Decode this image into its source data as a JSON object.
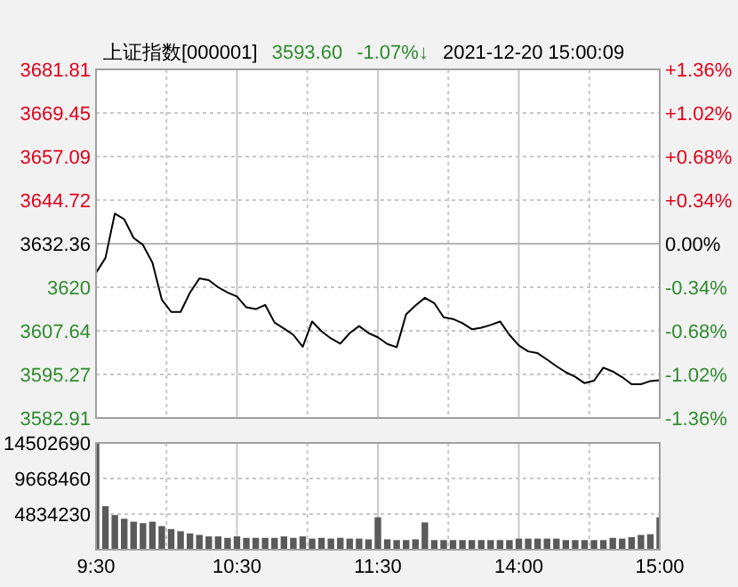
{
  "chart_data": [
    {
      "type": "line",
      "title": "上证指数[000001]",
      "annotations": [
        "3593.60",
        "-1.07%↓",
        "2021-12-20 15:00:09"
      ],
      "tick_labels": "y",
      "grid": true,
      "categories": [
        null,
        null,
        null,
        null,
        null,
        null,
        null,
        null,
        null,
        null,
        null,
        null,
        null,
        null,
        null,
        null,
        null,
        null,
        null,
        null,
        null,
        null,
        null,
        null,
        null,
        null,
        null,
        null,
        null,
        null,
        null,
        null,
        null,
        null,
        null,
        null,
        null,
        null,
        null,
        null,
        null,
        null,
        null,
        null,
        null,
        null,
        null,
        null,
        null,
        null,
        null,
        null,
        null,
        null,
        null,
        null,
        null,
        null,
        null,
        null,
        null
      ],
      "series": [
        {
          "color": "#000000",
          "values": [
            3624.1,
            3628.3,
            3640.9,
            3639.3,
            3634.0,
            3632.0,
            3627.0,
            3616.5,
            3613.0,
            3613.0,
            3618.5,
            3622.5,
            3622.0,
            3620.0,
            3618.5,
            3617.4,
            3614.3,
            3613.8,
            3615.0,
            3610.0,
            3608.3,
            3606.5,
            3603.1,
            3610.3,
            3607.5,
            3605.5,
            3604.0,
            3607.0,
            3609.0,
            3607.0,
            3605.8,
            3603.9,
            3603.0,
            3612.3,
            3614.8,
            3617.0,
            3615.5,
            3611.5,
            3611.0,
            3609.8,
            3608.1,
            3608.5,
            3609.3,
            3610.3,
            3606.5,
            3603.5,
            3601.8,
            3601.3,
            3599.5,
            3597.6,
            3595.9,
            3594.6,
            3592.8,
            3593.5,
            3597.2,
            3596.1,
            3594.5,
            3592.5,
            3592.5,
            3593.4,
            3593.6
          ]
        }
      ],
      "ylim": [
        3582.91,
        3681.81
      ],
      "yticks": [
        3582.91,
        3595.27,
        3607.64,
        {
          "value": 3620.0,
          "label": "3620"
        },
        3632.36,
        3644.72,
        3657.09,
        3669.45,
        3681.81
      ],
      "y2lim": [
        -1.36,
        1.36
      ],
      "y2ticks": [
        {
          "value": -1.36,
          "label": "-1.36%"
        },
        {
          "value": -1.02,
          "label": "-1.02%"
        },
        {
          "value": -0.68,
          "label": "-0.68%"
        },
        {
          "value": -0.34,
          "label": "-0.34%"
        },
        {
          "value": 0,
          "label": "0.00%"
        },
        {
          "value": 0.34,
          "label": "+0.34%"
        },
        {
          "value": 0.68,
          "label": "+0.68%"
        },
        {
          "value": 1.02,
          "label": "+1.02%"
        },
        {
          "value": 1.36,
          "label": "+1.36%"
        }
      ],
      "ref_lines": [
        {
          "axis": "y2",
          "value": 0,
          "color": "#b4b4b4"
        }
      ]
    },
    {
      "type": "bar",
      "grid": true,
      "categories": [
        "9:30",
        null,
        null,
        null,
        null,
        null,
        null,
        null,
        null,
        null,
        null,
        null,
        null,
        null,
        null,
        "10:30",
        null,
        null,
        null,
        null,
        null,
        null,
        null,
        null,
        null,
        null,
        null,
        null,
        null,
        null,
        "11:30",
        null,
        null,
        null,
        null,
        null,
        null,
        null,
        null,
        null,
        null,
        null,
        null,
        null,
        null,
        "14:00",
        null,
        null,
        null,
        null,
        null,
        null,
        null,
        null,
        null,
        null,
        null,
        null,
        null,
        null,
        "15:00"
      ],
      "series": [
        {
          "color": "#5a5a5a",
          "values": [
            14500000,
            5900000,
            4700000,
            4200000,
            3800000,
            3600000,
            3800000,
            3200000,
            2800000,
            2500000,
            2200000,
            2000000,
            1800000,
            1800000,
            1600000,
            1800000,
            1600000,
            1600000,
            1600000,
            1600000,
            1800000,
            1600000,
            1800000,
            1500000,
            1600000,
            1500000,
            1600000,
            1500000,
            1500000,
            1400000,
            4400000,
            1400000,
            1300000,
            1300000,
            1400000,
            3700000,
            1300000,
            1300000,
            1300000,
            1300000,
            1300000,
            1300000,
            1300000,
            1300000,
            1300000,
            1500000,
            1500000,
            1500000,
            1500000,
            1500000,
            1300000,
            1300000,
            1300000,
            1300000,
            1300000,
            1600000,
            1500000,
            1700000,
            2000000,
            2100000,
            4400000
          ]
        }
      ],
      "ylim": [
        0,
        14502690
      ],
      "yticks": [
        {
          "value": 0,
          "label": null
        },
        4834230,
        9668460,
        14502690
      ]
    }
  ]
}
